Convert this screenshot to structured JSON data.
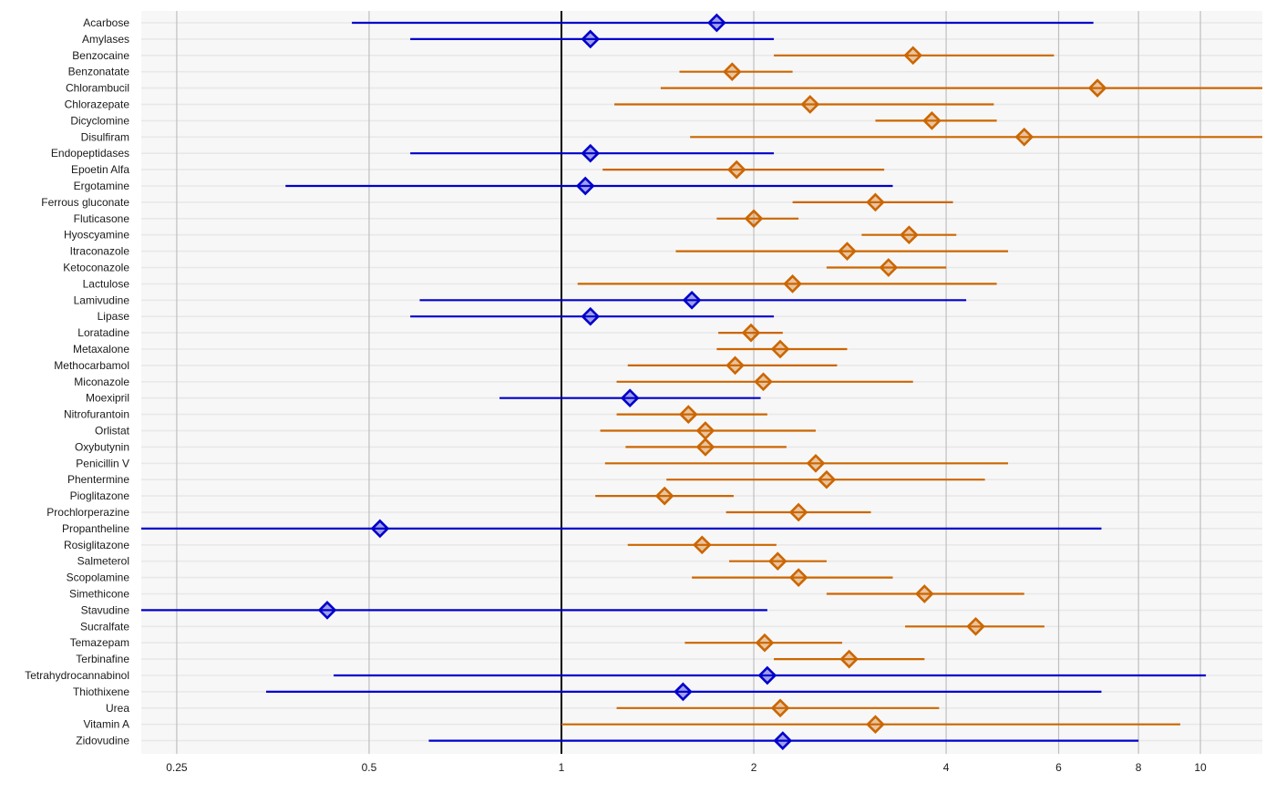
{
  "chart_data": {
    "type": "forest",
    "title": "",
    "xlabel": "",
    "ylabel": "",
    "x_scale": "log",
    "xlim": [
      0.22,
      12.5
    ],
    "x_ticks": [
      0.25,
      0.5,
      1,
      2,
      4,
      6,
      8,
      10
    ],
    "x_tick_labels": [
      "0.25",
      "0.5",
      "1",
      "2",
      "4",
      "6",
      "8",
      "10"
    ],
    "reference_line": 1,
    "grid": true,
    "colors": {
      "significant": "#cc6600",
      "nonsignificant": "#0000cc",
      "reference": "#000000",
      "panel": "#f7f7f7",
      "grid_major": "#bfbfbf",
      "grid_row": "#e8e8e8"
    },
    "rows": [
      {
        "label": "Acarbose",
        "est": 1.75,
        "lo": 0.47,
        "hi": 6.8,
        "sig": false
      },
      {
        "label": "Amylases",
        "est": 1.11,
        "lo": 0.58,
        "hi": 2.15,
        "sig": false
      },
      {
        "label": "Benzocaine",
        "est": 3.55,
        "lo": 2.15,
        "hi": 5.9,
        "sig": true
      },
      {
        "label": "Benzonatate",
        "est": 1.85,
        "lo": 1.53,
        "hi": 2.3,
        "sig": true
      },
      {
        "label": "Chlorambucil",
        "est": 6.9,
        "lo": 1.43,
        "hi": 12.5,
        "sig": true
      },
      {
        "label": "Chlorazepate",
        "est": 2.45,
        "lo": 1.21,
        "hi": 4.75,
        "sig": true
      },
      {
        "label": "Dicyclomine",
        "est": 3.8,
        "lo": 3.1,
        "hi": 4.8,
        "sig": true
      },
      {
        "label": "Disulfiram",
        "est": 5.3,
        "lo": 1.59,
        "hi": 12.5,
        "sig": true
      },
      {
        "label": "Endopeptidases",
        "est": 1.11,
        "lo": 0.58,
        "hi": 2.15,
        "sig": false
      },
      {
        "label": "Epoetin Alfa",
        "est": 1.88,
        "lo": 1.16,
        "hi": 3.2,
        "sig": true
      },
      {
        "label": "Ergotamine",
        "est": 1.09,
        "lo": 0.37,
        "hi": 3.3,
        "sig": false
      },
      {
        "label": "Ferrous gluconate",
        "est": 3.1,
        "lo": 2.3,
        "hi": 4.1,
        "sig": true
      },
      {
        "label": "Fluticasone",
        "est": 2.0,
        "lo": 1.75,
        "hi": 2.35,
        "sig": true
      },
      {
        "label": "Hyoscyamine",
        "est": 3.5,
        "lo": 2.95,
        "hi": 4.15,
        "sig": true
      },
      {
        "label": "Itraconazole",
        "est": 2.8,
        "lo": 1.51,
        "hi": 5.0,
        "sig": true
      },
      {
        "label": "Ketoconazole",
        "est": 3.25,
        "lo": 2.6,
        "hi": 4.0,
        "sig": true
      },
      {
        "label": "Lactulose",
        "est": 2.3,
        "lo": 1.06,
        "hi": 4.8,
        "sig": true
      },
      {
        "label": "Lamivudine",
        "est": 1.6,
        "lo": 0.6,
        "hi": 4.3,
        "sig": false
      },
      {
        "label": "Lipase",
        "est": 1.11,
        "lo": 0.58,
        "hi": 2.15,
        "sig": false
      },
      {
        "label": "Loratadine",
        "est": 1.98,
        "lo": 1.76,
        "hi": 2.22,
        "sig": true
      },
      {
        "label": "Metaxalone",
        "est": 2.2,
        "lo": 1.75,
        "hi": 2.8,
        "sig": true
      },
      {
        "label": "Methocarbamol",
        "est": 1.87,
        "lo": 1.27,
        "hi": 2.7,
        "sig": true
      },
      {
        "label": "Miconazole",
        "est": 2.07,
        "lo": 1.22,
        "hi": 3.55,
        "sig": true
      },
      {
        "label": "Moexipril",
        "est": 1.28,
        "lo": 0.8,
        "hi": 2.05,
        "sig": false
      },
      {
        "label": "Nitrofurantoin",
        "est": 1.58,
        "lo": 1.22,
        "hi": 2.1,
        "sig": true
      },
      {
        "label": "Orlistat",
        "est": 1.68,
        "lo": 1.15,
        "hi": 2.5,
        "sig": true
      },
      {
        "label": "Oxybutynin",
        "est": 1.68,
        "lo": 1.26,
        "hi": 2.25,
        "sig": true
      },
      {
        "label": "Penicillin V",
        "est": 2.5,
        "lo": 1.17,
        "hi": 5.0,
        "sig": true
      },
      {
        "label": "Phentermine",
        "est": 2.6,
        "lo": 1.46,
        "hi": 4.6,
        "sig": true
      },
      {
        "label": "Pioglitazone",
        "est": 1.45,
        "lo": 1.13,
        "hi": 1.86,
        "sig": true
      },
      {
        "label": "Prochlorperazine",
        "est": 2.35,
        "lo": 1.81,
        "hi": 3.05,
        "sig": true
      },
      {
        "label": "Propantheline",
        "est": 0.52,
        "lo": 0.22,
        "hi": 7.0,
        "sig": false
      },
      {
        "label": "Rosiglitazone",
        "est": 1.66,
        "lo": 1.27,
        "hi": 2.17,
        "sig": true
      },
      {
        "label": "Salmeterol",
        "est": 2.18,
        "lo": 1.83,
        "hi": 2.6,
        "sig": true
      },
      {
        "label": "Scopolamine",
        "est": 2.35,
        "lo": 1.6,
        "hi": 3.3,
        "sig": true
      },
      {
        "label": "Simethicone",
        "est": 3.7,
        "lo": 2.6,
        "hi": 5.3,
        "sig": true
      },
      {
        "label": "Stavudine",
        "est": 0.43,
        "lo": 0.22,
        "hi": 2.1,
        "sig": false
      },
      {
        "label": "Sucralfate",
        "est": 4.45,
        "lo": 3.45,
        "hi": 5.7,
        "sig": true
      },
      {
        "label": "Temazepam",
        "est": 2.08,
        "lo": 1.56,
        "hi": 2.75,
        "sig": true
      },
      {
        "label": "Terbinafine",
        "est": 2.82,
        "lo": 2.15,
        "hi": 3.7,
        "sig": true
      },
      {
        "label": "Tetrahydrocannabinol",
        "est": 2.1,
        "lo": 0.44,
        "hi": 10.2,
        "sig": false
      },
      {
        "label": "Thiothixene",
        "est": 1.55,
        "lo": 0.345,
        "hi": 7.0,
        "sig": false
      },
      {
        "label": "Urea",
        "est": 2.2,
        "lo": 1.22,
        "hi": 3.9,
        "sig": true
      },
      {
        "label": "Vitamin A",
        "est": 3.1,
        "lo": 1.0,
        "hi": 9.3,
        "sig": true
      },
      {
        "label": "Zidovudine",
        "est": 2.22,
        "lo": 0.62,
        "hi": 8.0,
        "sig": false
      }
    ]
  }
}
